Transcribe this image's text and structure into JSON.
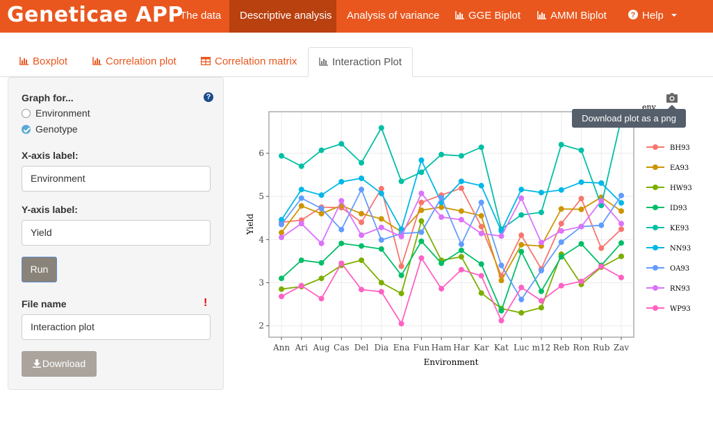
{
  "app": {
    "brand": "Geneticae APP",
    "nav": [
      {
        "label": "The data",
        "active": false,
        "icon": ""
      },
      {
        "label": "Descriptive analysis",
        "active": true,
        "icon": ""
      },
      {
        "label": "Analysis of variance",
        "active": false,
        "icon": ""
      },
      {
        "label": "GGE Biplot",
        "active": false,
        "icon": "bar-chart-icon"
      },
      {
        "label": "AMMI Biplot",
        "active": false,
        "icon": "bar-chart-icon"
      },
      {
        "label": "Help",
        "active": false,
        "icon": "question-circle-icon"
      }
    ]
  },
  "tabs": [
    {
      "label": "Boxplot",
      "icon": "bar-chart-icon"
    },
    {
      "label": "Correlation plot",
      "icon": "bar-chart-icon"
    },
    {
      "label": "Correlation matrix",
      "icon": "table-icon"
    },
    {
      "label": "Interaction Plot",
      "icon": "bar-chart-icon",
      "active": true
    }
  ],
  "sidebar": {
    "graph_for_label": "Graph for...",
    "options": [
      {
        "label": "Environment",
        "checked": false
      },
      {
        "label": "Genotype",
        "checked": true
      }
    ],
    "xaxis_label": "X-axis label:",
    "xaxis_value": "Environment",
    "yaxis_label": "Y-axis label:",
    "yaxis_value": "Yield",
    "run_label": "Run",
    "filename_label": "File name",
    "filename_value": "Interaction plot",
    "download_label": "Download"
  },
  "plot_toolbar": {
    "tooltip": "Download plot as a png",
    "camera_icon": "camera-icon"
  },
  "chart_data": {
    "type": "line",
    "xlabel": "Environment",
    "ylabel": "Yield",
    "legend_title": "env",
    "legend_position": "right",
    "ylim": [
      1.8,
      6.9
    ],
    "yticks": [
      2,
      3,
      4,
      5,
      6
    ],
    "grid": true,
    "categories": [
      "Ann",
      "Ari",
      "Aug",
      "Cas",
      "Del",
      "Dia",
      "Ena",
      "Fun",
      "Ham",
      "Har",
      "Kar",
      "Kat",
      "Luc",
      "m12",
      "Reb",
      "Ron",
      "Rub",
      "Zav"
    ],
    "series": [
      {
        "name": "BH93",
        "color": "#F8766D",
        "values": [
          4.4,
          4.45,
          4.75,
          4.74,
          4.4,
          5.18,
          3.38,
          4.86,
          5.03,
          5.19,
          4.3,
          3.16,
          4.1,
          3.32,
          4.37,
          4.95,
          3.8,
          4.24
        ]
      },
      {
        "name": "EA93",
        "color": "#CD9600",
        "values": [
          4.16,
          4.78,
          4.6,
          4.79,
          4.6,
          4.48,
          4.18,
          4.68,
          4.75,
          4.66,
          4.55,
          3.05,
          3.88,
          3.85,
          4.71,
          4.7,
          4.98,
          4.66
        ]
      },
      {
        "name": "HW93",
        "color": "#7CAE00",
        "values": [
          2.85,
          2.91,
          3.1,
          3.4,
          3.52,
          3.0,
          2.75,
          4.43,
          3.52,
          3.6,
          2.76,
          2.4,
          2.3,
          2.42,
          3.66,
          2.96,
          3.36,
          3.61
        ]
      },
      {
        "name": "ID93",
        "color": "#00BE67",
        "values": [
          3.1,
          3.52,
          3.46,
          3.91,
          3.85,
          3.78,
          3.17,
          3.96,
          3.45,
          3.75,
          3.43,
          2.35,
          3.72,
          2.8,
          3.6,
          3.9,
          3.4,
          3.92
        ]
      },
      {
        "name": "KE93",
        "color": "#00BFA4",
        "values": [
          5.94,
          5.7,
          6.07,
          6.22,
          5.78,
          6.59,
          5.35,
          5.56,
          5.97,
          5.94,
          6.14,
          4.24,
          4.57,
          4.63,
          6.2,
          6.07,
          4.79,
          6.8
        ]
      },
      {
        "name": "NN93",
        "color": "#00B8E7",
        "values": [
          4.46,
          5.16,
          5.03,
          5.34,
          5.42,
          5.07,
          4.24,
          5.84,
          4.86,
          5.35,
          5.25,
          4.2,
          5.16,
          5.09,
          5.15,
          5.33,
          5.31,
          4.85
        ]
      },
      {
        "name": "OA93",
        "color": "#619CFF",
        "values": [
          4.35,
          4.96,
          4.72,
          4.23,
          5.16,
          3.99,
          4.14,
          4.17,
          4.97,
          3.89,
          4.86,
          3.4,
          2.61,
          3.28,
          3.94,
          4.3,
          4.33,
          5.02
        ]
      },
      {
        "name": "RN93",
        "color": "#DB72FB",
        "values": [
          4.05,
          4.37,
          3.91,
          4.9,
          4.1,
          4.28,
          4.07,
          5.07,
          4.52,
          4.46,
          4.14,
          4.08,
          4.96,
          3.93,
          4.2,
          4.3,
          4.9,
          4.37
        ]
      },
      {
        "name": "WP93",
        "color": "#FF61C3",
        "values": [
          2.68,
          2.93,
          2.63,
          3.45,
          2.84,
          2.79,
          2.05,
          3.57,
          2.86,
          3.3,
          3.16,
          2.12,
          2.89,
          2.58,
          2.93,
          3.03,
          3.38,
          3.12
        ]
      }
    ]
  }
}
